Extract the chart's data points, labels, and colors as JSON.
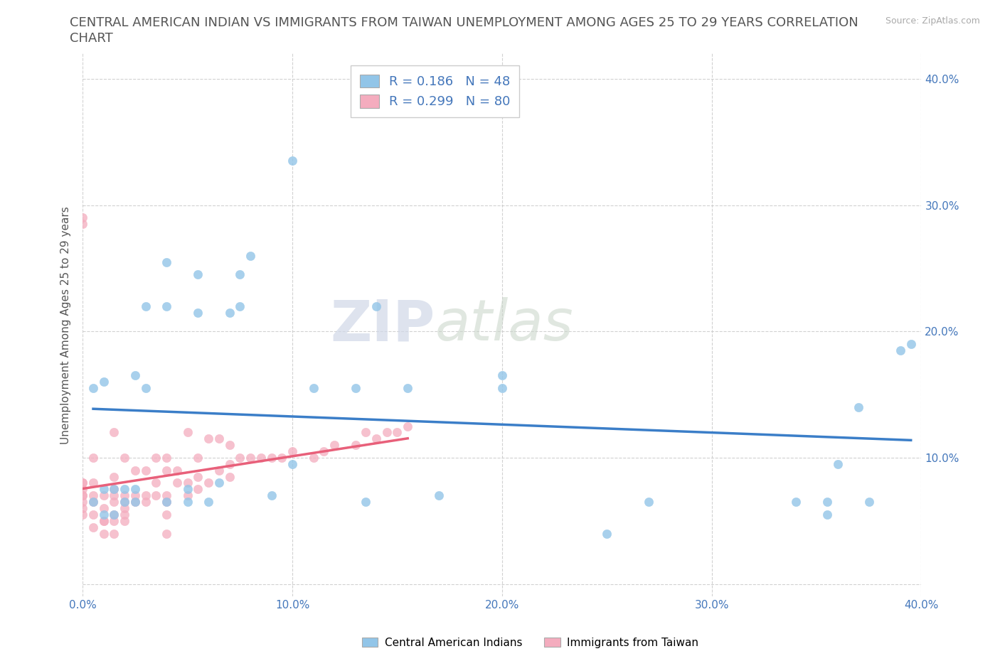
{
  "title_line1": "CENTRAL AMERICAN INDIAN VS IMMIGRANTS FROM TAIWAN UNEMPLOYMENT AMONG AGES 25 TO 29 YEARS CORRELATION",
  "title_line2": "CHART",
  "source_text": "Source: ZipAtlas.com",
  "ylabel": "Unemployment Among Ages 25 to 29 years",
  "xlim": [
    0.0,
    0.4
  ],
  "ylim": [
    -0.01,
    0.42
  ],
  "xticks": [
    0.0,
    0.1,
    0.2,
    0.3,
    0.4
  ],
  "yticks": [
    0.0,
    0.1,
    0.2,
    0.3,
    0.4
  ],
  "xticklabels": [
    "0.0%",
    "10.0%",
    "20.0%",
    "30.0%",
    "40.0%"
  ],
  "yticklabels_right": [
    "",
    "10.0%",
    "20.0%",
    "30.0%",
    "40.0%"
  ],
  "group1_color": "#92C5E8",
  "group2_color": "#F4ACBE",
  "group1_line_color": "#3B7EC8",
  "group2_line_color": "#E8607A",
  "R1": 0.186,
  "N1": 48,
  "R2": 0.299,
  "N2": 80,
  "watermark_zip": "ZIP",
  "watermark_atlas": "atlas",
  "legend_label1": "Central American Indians",
  "legend_label2": "Immigrants from Taiwan",
  "background_color": "#ffffff",
  "grid_color": "#cccccc",
  "title_color": "#555555",
  "title_fontsize": 13,
  "label_fontsize": 11,
  "tick_fontsize": 11,
  "axis_color": "#4477BB",
  "group1_x": [
    0.005,
    0.005,
    0.01,
    0.01,
    0.01,
    0.015,
    0.015,
    0.02,
    0.02,
    0.025,
    0.025,
    0.025,
    0.03,
    0.03,
    0.04,
    0.04,
    0.04,
    0.05,
    0.05,
    0.055,
    0.055,
    0.06,
    0.065,
    0.07,
    0.075,
    0.075,
    0.08,
    0.09,
    0.1,
    0.1,
    0.11,
    0.13,
    0.135,
    0.14,
    0.155,
    0.17,
    0.2,
    0.2,
    0.25,
    0.27,
    0.34,
    0.355,
    0.355,
    0.36,
    0.37,
    0.375,
    0.39,
    0.395
  ],
  "group1_y": [
    0.065,
    0.155,
    0.055,
    0.075,
    0.16,
    0.055,
    0.075,
    0.065,
    0.075,
    0.065,
    0.075,
    0.165,
    0.22,
    0.155,
    0.065,
    0.22,
    0.255,
    0.065,
    0.075,
    0.215,
    0.245,
    0.065,
    0.08,
    0.215,
    0.22,
    0.245,
    0.26,
    0.07,
    0.095,
    0.335,
    0.155,
    0.155,
    0.065,
    0.22,
    0.155,
    0.07,
    0.155,
    0.165,
    0.04,
    0.065,
    0.065,
    0.055,
    0.065,
    0.095,
    0.14,
    0.065,
    0.185,
    0.19
  ],
  "group2_x": [
    0.0,
    0.0,
    0.0,
    0.0,
    0.0,
    0.0,
    0.0,
    0.0,
    0.0,
    0.0,
    0.005,
    0.005,
    0.005,
    0.005,
    0.005,
    0.005,
    0.01,
    0.01,
    0.01,
    0.01,
    0.01,
    0.015,
    0.015,
    0.015,
    0.015,
    0.015,
    0.015,
    0.015,
    0.015,
    0.02,
    0.02,
    0.02,
    0.02,
    0.02,
    0.02,
    0.025,
    0.025,
    0.025,
    0.03,
    0.03,
    0.03,
    0.035,
    0.035,
    0.035,
    0.04,
    0.04,
    0.04,
    0.04,
    0.04,
    0.04,
    0.045,
    0.045,
    0.05,
    0.05,
    0.05,
    0.055,
    0.055,
    0.055,
    0.06,
    0.06,
    0.065,
    0.065,
    0.07,
    0.07,
    0.07,
    0.075,
    0.08,
    0.085,
    0.09,
    0.095,
    0.1,
    0.11,
    0.115,
    0.12,
    0.13,
    0.135,
    0.14,
    0.145,
    0.15,
    0.155
  ],
  "group2_y": [
    0.055,
    0.06,
    0.065,
    0.07,
    0.07,
    0.075,
    0.08,
    0.08,
    0.285,
    0.29,
    0.045,
    0.055,
    0.065,
    0.07,
    0.08,
    0.1,
    0.04,
    0.05,
    0.05,
    0.06,
    0.07,
    0.04,
    0.05,
    0.055,
    0.065,
    0.07,
    0.075,
    0.085,
    0.12,
    0.05,
    0.055,
    0.06,
    0.065,
    0.07,
    0.1,
    0.065,
    0.07,
    0.09,
    0.065,
    0.07,
    0.09,
    0.07,
    0.08,
    0.1,
    0.04,
    0.055,
    0.065,
    0.07,
    0.09,
    0.1,
    0.08,
    0.09,
    0.07,
    0.08,
    0.12,
    0.075,
    0.085,
    0.1,
    0.08,
    0.115,
    0.09,
    0.115,
    0.085,
    0.095,
    0.11,
    0.1,
    0.1,
    0.1,
    0.1,
    0.1,
    0.105,
    0.1,
    0.105,
    0.11,
    0.11,
    0.12,
    0.115,
    0.12,
    0.12,
    0.125
  ]
}
